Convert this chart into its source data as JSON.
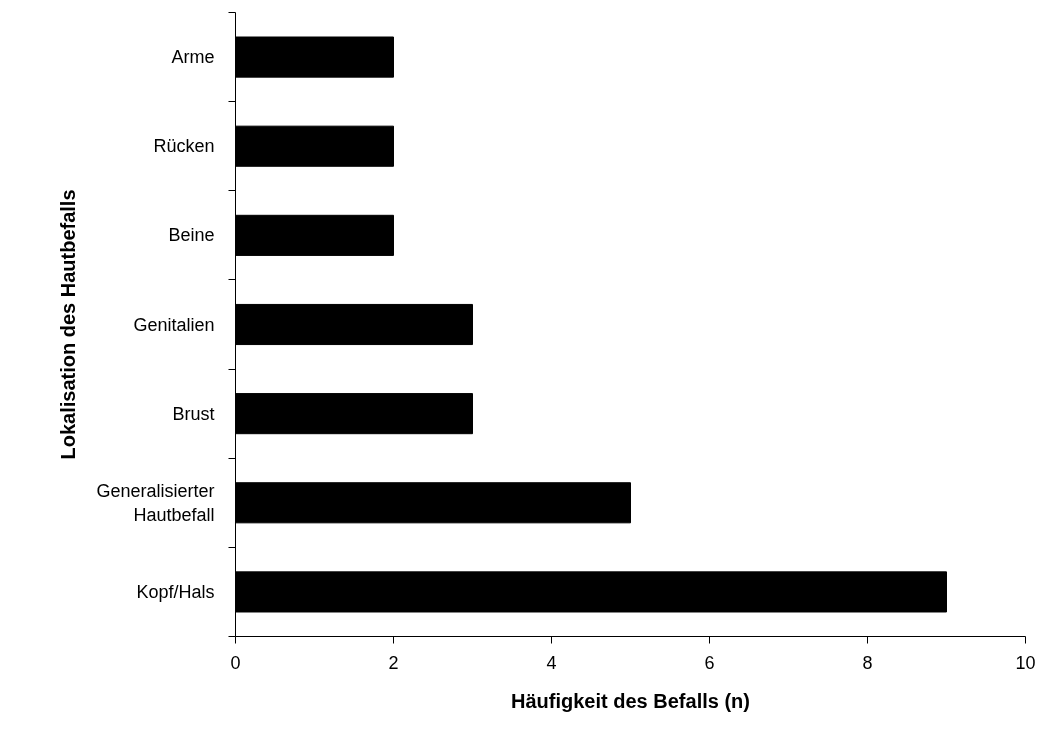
{
  "chart_data": {
    "type": "bar",
    "orientation": "horizontal",
    "xlabel": "Häufigkeit des Befalls (n)",
    "ylabel": "Lokalisation des Hautbefalls",
    "categories": [
      "Arme",
      "Rücken",
      "Beine",
      "Genitalien",
      "Brust",
      "Generalisierter\nHautbefall",
      "Kopf/Hals"
    ],
    "values": [
      2,
      2,
      2,
      3,
      3,
      5,
      9
    ],
    "color": "#000000",
    "xlim": [
      0,
      10
    ],
    "xticks": [
      0,
      2,
      4,
      6,
      8,
      10
    ],
    "grid": false
  }
}
